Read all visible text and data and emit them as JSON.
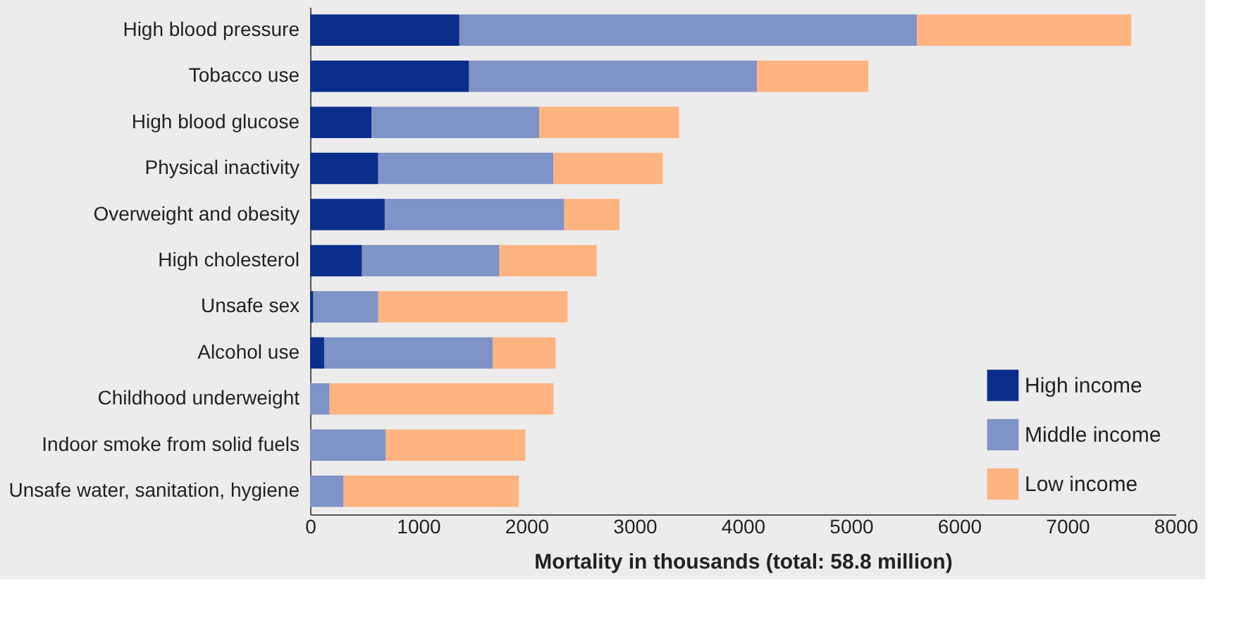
{
  "chart_data": {
    "type": "bar",
    "orientation": "horizontal",
    "stacked": true,
    "categories": [
      "High blood pressure",
      "Tobacco use",
      "High blood glucose",
      "Physical inactivity",
      "Overweight and obesity",
      "High cholesterol",
      "Unsafe sex",
      "Alcohol use",
      "Childhood underweight",
      "Indoor smoke from solid fuels",
      "Unsafe water, sanitation, hygiene"
    ],
    "series": [
      {
        "name": "High income",
        "color": "#0b2d8c",
        "values": [
          1380,
          1470,
          570,
          630,
          690,
          480,
          30,
          130,
          0,
          0,
          0
        ]
      },
      {
        "name": "Middle income",
        "color": "#8093c6",
        "values": [
          4230,
          2660,
          1550,
          1620,
          1660,
          1270,
          600,
          1560,
          180,
          700,
          310
        ]
      },
      {
        "name": "Low income",
        "color": "#ffb380",
        "values": [
          1980,
          1030,
          1290,
          1010,
          510,
          900,
          1750,
          580,
          2070,
          1290,
          1620
        ]
      }
    ],
    "xlabel": "Mortality in thousands (total: 58.8 million)",
    "xlim": [
      0,
      8000
    ],
    "xticks": [
      0,
      1000,
      2000,
      3000,
      4000,
      5000,
      6000,
      7000,
      8000
    ],
    "grid": false,
    "legend": "bottom right"
  }
}
